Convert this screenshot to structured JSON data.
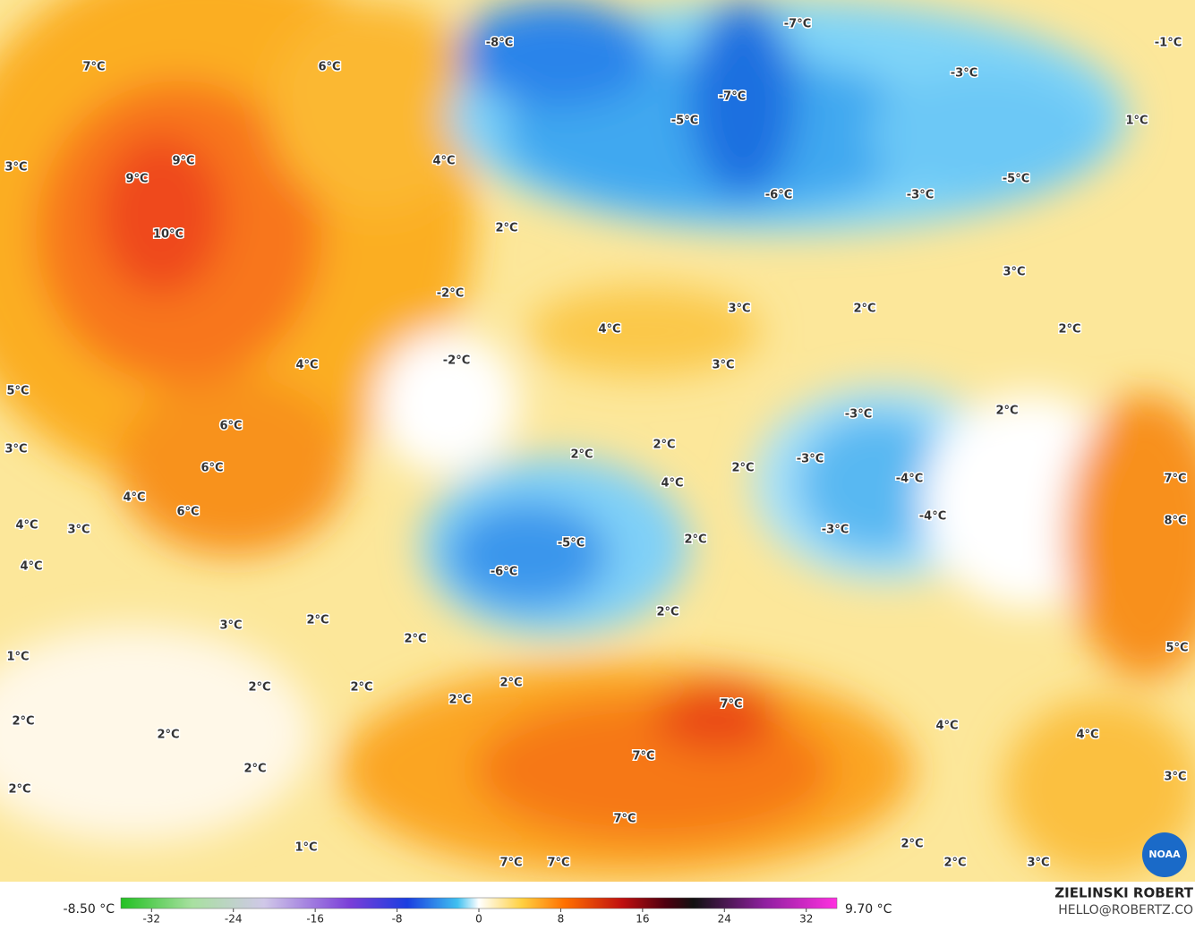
{
  "map": {
    "labels": [
      "-8°C",
      "-7°C",
      "-1°C",
      "7°C",
      "6°C",
      "-3°C",
      "-7°C",
      "-5°C",
      "1°C",
      "9°C",
      "4°C",
      "3°C",
      "9°C",
      "-5°C",
      "-6°C",
      "-3°C",
      "2°C",
      "10°C",
      "3°C",
      "-2°C",
      "3°C",
      "2°C",
      "4°C",
      "2°C",
      "-2°C",
      "3°C",
      "4°C",
      "5°C",
      "2°C",
      "-3°C",
      "6°C",
      "2°C",
      "2°C",
      "3°C",
      "-3°C",
      "2°C",
      "6°C",
      "-4°C",
      "7°C",
      "4°C",
      "4°C",
      "6°C",
      "-4°C",
      "8°C",
      "4°C",
      "3°C",
      "-3°C",
      "2°C",
      "-5°C",
      "4°C",
      "-6°C",
      "2°C",
      "2°C",
      "3°C",
      "2°C",
      "5°C",
      "1°C",
      "2°C",
      "2°C",
      "2°C",
      "2°C",
      "7°C",
      "2°C",
      "4°C",
      "2°C",
      "4°C",
      "7°C",
      "2°C",
      "3°C",
      "2°C",
      "7°C",
      "1°C",
      "2°C",
      "7°C",
      "7°C",
      "2°C",
      "3°C"
    ],
    "logo": "NOAA"
  },
  "colorbar": {
    "min_label": "-8.50 °C",
    "max_label": "9.70 °C",
    "range": [
      -35,
      35
    ],
    "ticks": [
      -32,
      -24,
      -16,
      -8,
      0,
      8,
      16,
      24,
      32
    ]
  },
  "credit": {
    "author": "ZIELINSKI ROBERT",
    "contact": "HELLO@ROBERTZ.CO"
  }
}
